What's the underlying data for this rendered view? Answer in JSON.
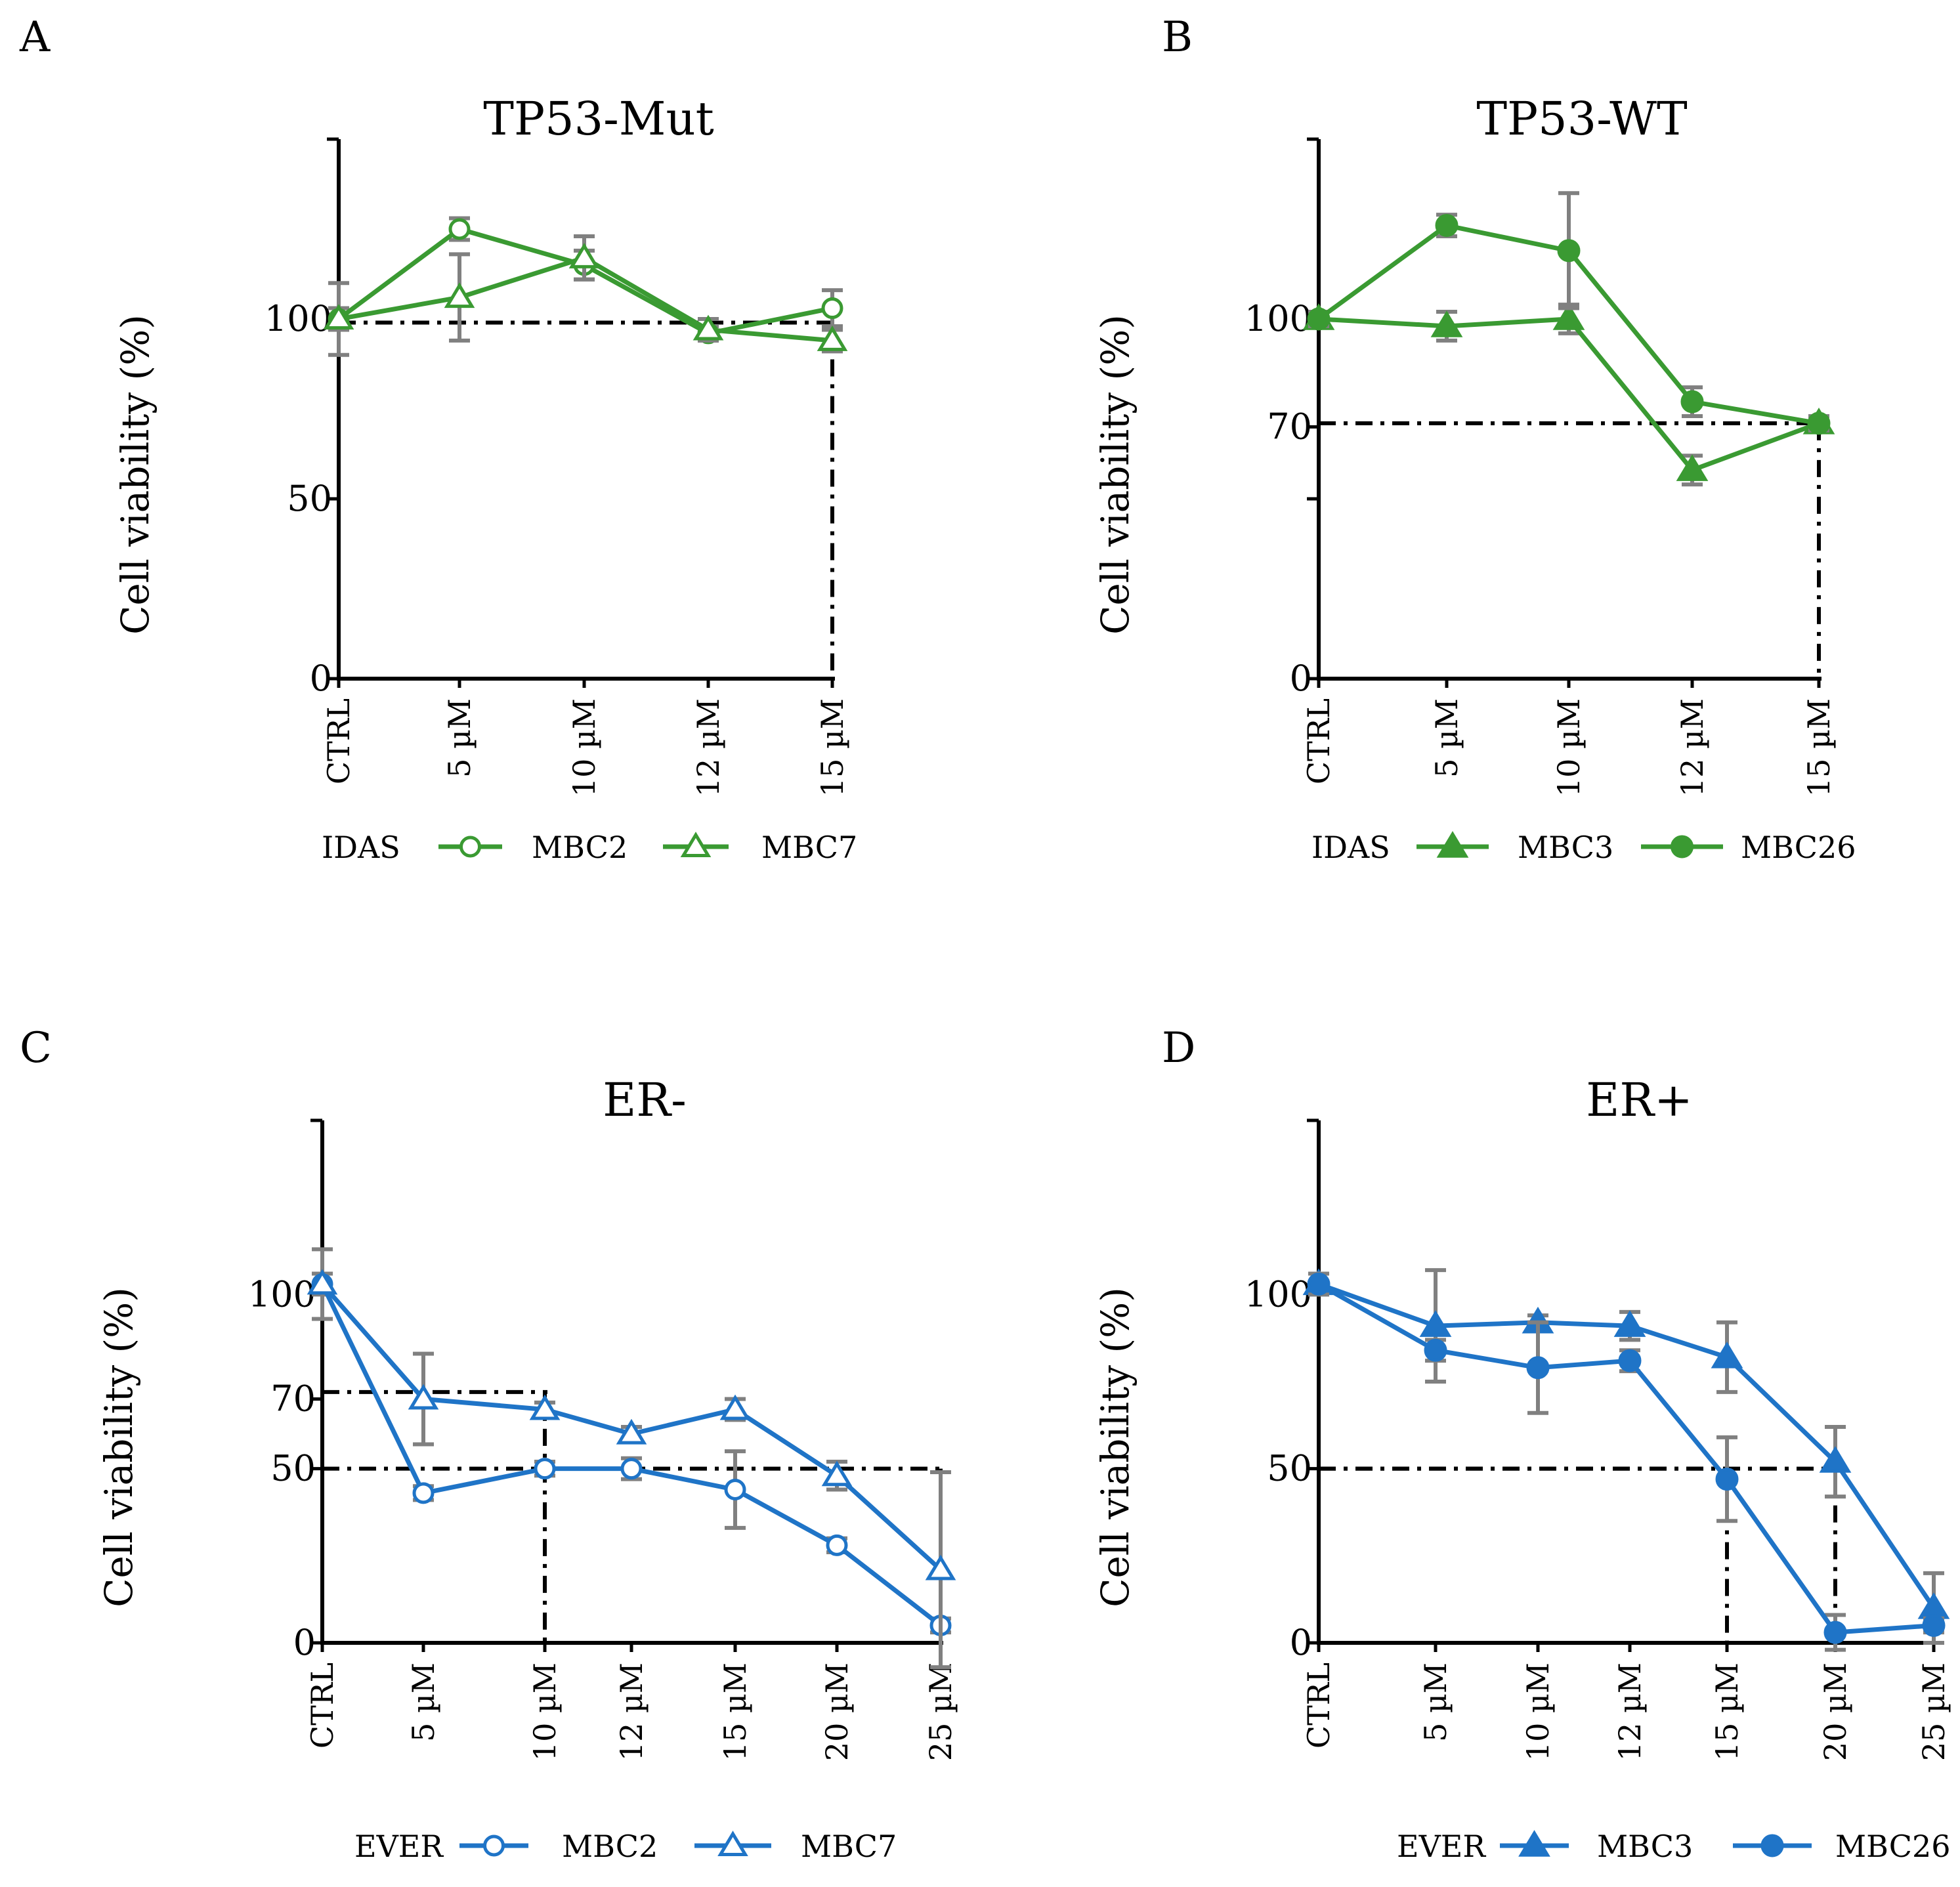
{
  "figure": {
    "colors": {
      "green": "#3a9a32",
      "blue": "#1f74c7",
      "error_bar": "#808080",
      "axis": "#000000"
    }
  },
  "chart_data": [
    {
      "panel": "A",
      "type": "line",
      "title": "TP53-Mut",
      "ylabel": "Cell viability  (%)",
      "ylim": [
        0,
        150
      ],
      "yticks": [
        0,
        50,
        100,
        150
      ],
      "ytick_labels": [
        "0",
        "50",
        "100"
      ],
      "categories": [
        "CTRL",
        "5 µM",
        "10 µM",
        "12 µM",
        "15 µM"
      ],
      "legend_title": "IDAS",
      "color": "green",
      "series": [
        {
          "name": "MBC2",
          "marker": "circle-open",
          "values": [
            100,
            125,
            115,
            96,
            103
          ],
          "errors": [
            3,
            3,
            4,
            2,
            5
          ]
        },
        {
          "name": "MBC7",
          "marker": "triangle-open",
          "values": [
            100,
            106,
            117,
            97,
            94
          ],
          "errors": [
            10,
            12,
            6,
            3,
            3
          ]
        }
      ],
      "reference": {
        "y": 99,
        "x_category": "15 µM"
      }
    },
    {
      "panel": "B",
      "type": "line",
      "title": "TP53-WT",
      "ylabel": "Cell viability  (%)",
      "ylim": [
        0,
        150
      ],
      "yticks": [
        0,
        50,
        70,
        100,
        150
      ],
      "ytick_labels": [
        "0",
        "70",
        "100"
      ],
      "categories": [
        "CTRL",
        "5 µM",
        "10 µM",
        "12 µM",
        "15 µM"
      ],
      "legend_title": "IDAS",
      "color": "green",
      "series": [
        {
          "name": "MBC3",
          "marker": "triangle-filled",
          "values": [
            100,
            98,
            100,
            58,
            71
          ],
          "errors": [
            2,
            4,
            4,
            4,
            2
          ]
        },
        {
          "name": "MBC26",
          "marker": "circle-filled",
          "values": [
            100,
            126,
            119,
            77,
            71
          ],
          "errors": [
            2,
            3,
            16,
            4,
            2
          ]
        }
      ],
      "reference": {
        "y": 71,
        "x_category": "15 µM"
      }
    },
    {
      "panel": "C",
      "type": "line",
      "title": "ER-",
      "ylabel": "Cell viability  (%)",
      "ylim": [
        0,
        150
      ],
      "yticks": [
        0,
        50,
        70,
        100,
        150
      ],
      "ytick_labels": [
        "0",
        "50",
        "70",
        "100"
      ],
      "categories": [
        "CTRL",
        "5 µM",
        "10 µM",
        "12 µM",
        "15 µM",
        "20 µM",
        "25 µM"
      ],
      "legend_title": "EVER",
      "color": "blue",
      "series": [
        {
          "name": "MBC2",
          "marker": "circle-open",
          "values": [
            103,
            43,
            50,
            50,
            44,
            28,
            5
          ],
          "errors": [
            3,
            2,
            2,
            3,
            11,
            2,
            2
          ]
        },
        {
          "name": "MBC7",
          "marker": "triangle-open",
          "values": [
            103,
            70,
            67,
            60,
            67,
            48,
            21
          ],
          "errors": [
            10,
            13,
            2,
            2,
            3,
            4,
            28
          ]
        }
      ],
      "reference_lines": [
        {
          "y": 72,
          "x_category": "10 µM"
        },
        {
          "y": 50,
          "x_category": "25 µM"
        }
      ]
    },
    {
      "panel": "D",
      "type": "line",
      "title": "ER+",
      "ylabel": "Cell viability  (%)",
      "ylim": [
        0,
        150
      ],
      "yticks": [
        0,
        50,
        100,
        150
      ],
      "ytick_labels": [
        "0",
        "50",
        "100"
      ],
      "categories": [
        "CTRL",
        "5 µM",
        "10 µM",
        "12 µM",
        "15 µM",
        "20 µM",
        "25 µM"
      ],
      "legend_title": "EVER",
      "color": "blue",
      "series": [
        {
          "name": "MBC3",
          "marker": "triangle-filled",
          "values": [
            103,
            91,
            92,
            91,
            82,
            52,
            10
          ],
          "errors": [
            3,
            16,
            2,
            4,
            10,
            10,
            10
          ]
        },
        {
          "name": "MBC26",
          "marker": "circle-filled",
          "values": [
            103,
            84,
            79,
            81,
            47,
            3,
            5
          ],
          "errors": [
            3,
            3,
            13,
            3,
            12,
            5,
            2
          ]
        }
      ],
      "reference_lines": [
        {
          "y": 50,
          "x_category": "15 µM"
        },
        {
          "y": 50,
          "x_category": "20 µM"
        }
      ]
    }
  ]
}
